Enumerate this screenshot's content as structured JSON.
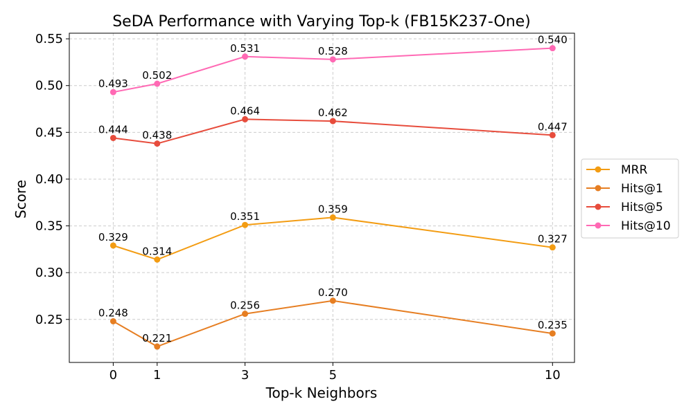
{
  "chart_data": {
    "type": "line",
    "title": "SeDA Performance with Varying Top-k (FB15K237-One)",
    "xlabel": "Top-k Neighbors",
    "ylabel": "Score",
    "x": [
      0,
      1,
      3,
      5,
      10
    ],
    "x_tick_labels": [
      "0",
      "1",
      "3",
      "5",
      "10"
    ],
    "xlim": [
      -1,
      10.5
    ],
    "ylim": [
      0.204,
      0.556
    ],
    "y_ticks": [
      0.25,
      0.3,
      0.35,
      0.4,
      0.45,
      0.5,
      0.55
    ],
    "y_tick_labels": [
      "0.25",
      "0.30",
      "0.35",
      "0.40",
      "0.45",
      "0.50",
      "0.55"
    ],
    "grid": true,
    "legend_position": "center-right-outside",
    "series": [
      {
        "name": "MRR",
        "color": "#f39c12",
        "values": [
          0.329,
          0.314,
          0.351,
          0.359,
          0.327
        ],
        "labels": [
          "0.329",
          "0.314",
          "0.351",
          "0.359",
          "0.327"
        ]
      },
      {
        "name": "Hits@1",
        "color": "#e67e22",
        "values": [
          0.248,
          0.221,
          0.256,
          0.27,
          0.235
        ],
        "labels": [
          "0.248",
          "0.221",
          "0.256",
          "0.270",
          "0.235"
        ]
      },
      {
        "name": "Hits@5",
        "color": "#e74c3c",
        "values": [
          0.444,
          0.438,
          0.464,
          0.462,
          0.447
        ],
        "labels": [
          "0.444",
          "0.438",
          "0.464",
          "0.462",
          "0.447"
        ]
      },
      {
        "name": "Hits@10",
        "color": "#ff69b4",
        "values": [
          0.493,
          0.502,
          0.531,
          0.528,
          0.54
        ],
        "labels": [
          "0.493",
          "0.502",
          "0.531",
          "0.528",
          "0.540"
        ]
      }
    ]
  }
}
